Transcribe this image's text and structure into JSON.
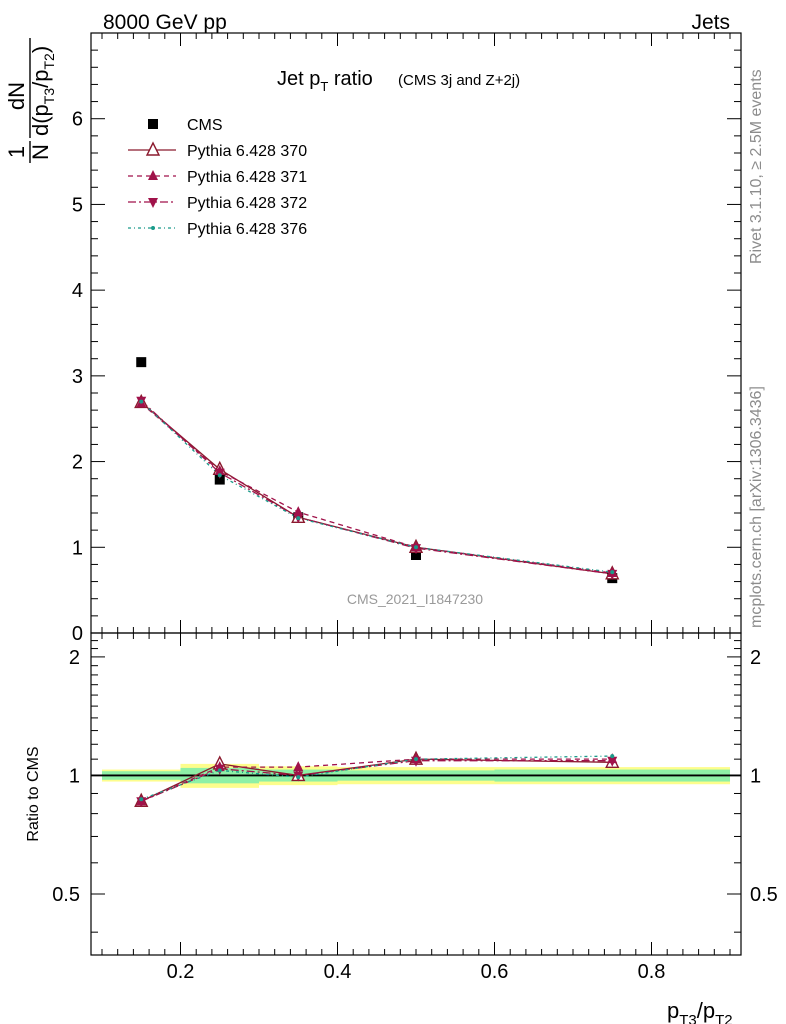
{
  "header": {
    "left": "8000 GeV pp",
    "right": "Jets"
  },
  "side": {
    "rivet": "Rivet 3.1.10, ≥ 2.5M events",
    "mcplots": "mcplots.cern.ch [arXiv:1306.3436]"
  },
  "chart_data": {
    "type": "scatter",
    "title_main": "Jet p",
    "title_sub": "T",
    "title_rest": " ratio",
    "title_small": "(CMS 3j and Z+2j)",
    "watermark": "CMS_2021_I1847230",
    "ylabel_top": {
      "one": "1",
      "N": "N",
      "dN": "dN",
      "d": "d(p",
      "s1": "T3",
      "slash": "/p",
      "s2": "T2",
      "close": ")"
    },
    "ylabel_ratio": "Ratio to CMS",
    "xlabel": {
      "p1": "p",
      "s1": "T3",
      "slash": "/p",
      "s2": "T2"
    },
    "xlim": [
      0.086,
      0.914
    ],
    "ylim_main": [
      0,
      7.0
    ],
    "ylim_ratio": [
      0.35,
      2.3
    ],
    "x_ticks": [
      {
        "v": 0.2,
        "label": "0.2"
      },
      {
        "v": 0.4,
        "label": "0.4"
      },
      {
        "v": 0.6,
        "label": "0.6"
      },
      {
        "v": 0.8,
        "label": "0.8"
      }
    ],
    "y_ticks_main": [
      {
        "v": 0,
        "label": "0"
      },
      {
        "v": 1,
        "label": "1"
      },
      {
        "v": 2,
        "label": "2"
      },
      {
        "v": 3,
        "label": "3"
      },
      {
        "v": 4,
        "label": "4"
      },
      {
        "v": 5,
        "label": "5"
      },
      {
        "v": 6,
        "label": "6"
      }
    ],
    "y_ticks_ratio": [
      {
        "v": 0.5,
        "label": "0.5"
      },
      {
        "v": 1,
        "label": "1"
      },
      {
        "v": 2,
        "label": "2"
      }
    ],
    "x": [
      0.15,
      0.25,
      0.35,
      0.5,
      0.75
    ],
    "bins": [
      [
        0.1,
        0.2
      ],
      [
        0.2,
        0.3
      ],
      [
        0.3,
        0.4
      ],
      [
        0.4,
        0.6
      ],
      [
        0.6,
        0.9
      ]
    ],
    "band_inner": [
      0.025,
      0.045,
      0.035,
      0.03,
      0.035
    ],
    "band_outer": [
      0.035,
      0.07,
      0.055,
      0.05,
      0.05
    ],
    "series": [
      {
        "name": "CMS",
        "marker": "square",
        "color": "#000000",
        "dash": "",
        "values": [
          3.16,
          1.79,
          1.35,
          0.91,
          0.64
        ],
        "ratio": [
          1.0,
          1.0,
          1.0,
          1.0,
          1.0
        ]
      },
      {
        "name": "Pythia 6.428 370",
        "marker": "triangle-up-open",
        "color": "#8b1a2e",
        "dash": "",
        "values": [
          2.69,
          1.91,
          1.35,
          1.0,
          0.69
        ],
        "ratio": [
          0.86,
          1.07,
          1.0,
          1.1,
          1.08
        ]
      },
      {
        "name": "Pythia 6.428 371",
        "marker": "triangle-up",
        "color": "#a0124a",
        "dash": "5,4",
        "values": [
          2.68,
          1.89,
          1.41,
          1.0,
          0.7
        ],
        "ratio": [
          0.86,
          1.05,
          1.05,
          1.1,
          1.1
        ]
      },
      {
        "name": "Pythia 6.428 372",
        "marker": "triangle-down",
        "color": "#a0124a",
        "dash": "8,3,2,3",
        "values": [
          2.71,
          1.87,
          1.35,
          0.99,
          0.69
        ],
        "ratio": [
          0.86,
          1.04,
          1.0,
          1.09,
          1.09
        ]
      },
      {
        "name": "Pythia 6.428 376",
        "marker": "dot",
        "color": "#1a9b8a",
        "dash": "3,3,1,3",
        "values": [
          2.7,
          1.84,
          1.34,
          1.0,
          0.71
        ],
        "ratio": [
          0.87,
          1.03,
          0.99,
          1.1,
          1.12
        ]
      }
    ]
  }
}
